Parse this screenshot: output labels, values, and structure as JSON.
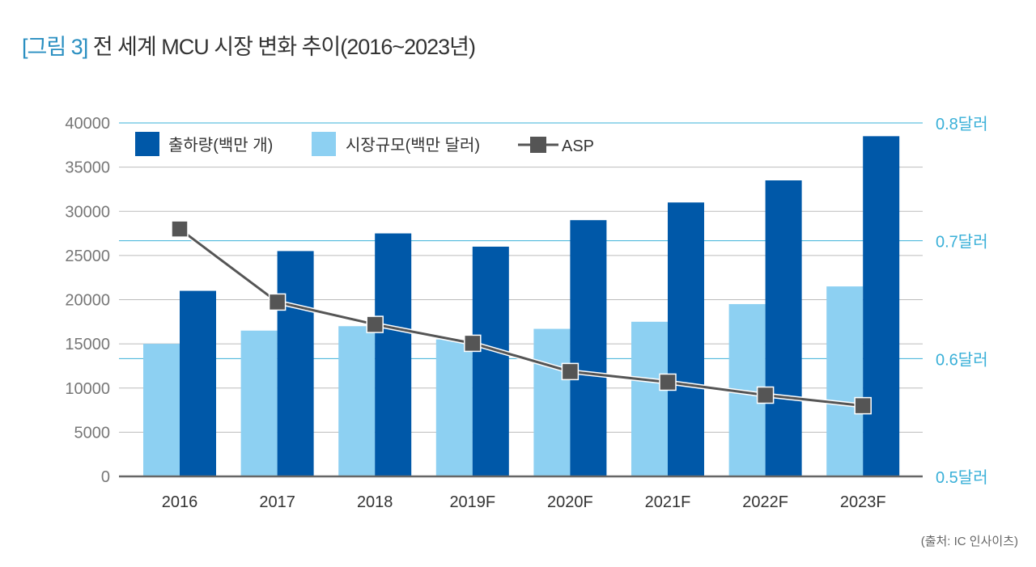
{
  "title_prefix": "[그림 3]",
  "title": "전 세계 MCU 시장 변화 추이(2016~2023년)",
  "source": "(출처: IC 인사이츠)",
  "colors": {
    "shipments": "#0058a8",
    "market": "#8dd0f2",
    "asp": "#555555",
    "right_axis": "#3ab0d8",
    "title_accent": "#2a8fc1"
  },
  "chart_data": {
    "type": "bar",
    "categories": [
      "2016",
      "2017",
      "2018",
      "2019F",
      "2020F",
      "2021F",
      "2022F",
      "2023F"
    ],
    "series": [
      {
        "name": "출하량(백만 개)",
        "type": "bar",
        "axis": "left",
        "values": [
          21000,
          25500,
          27500,
          26000,
          29000,
          31000,
          33500,
          38500
        ]
      },
      {
        "name": "시장규모(백만 달러)",
        "type": "bar",
        "axis": "left",
        "values": [
          15000,
          16500,
          17000,
          15500,
          16700,
          17500,
          19500,
          21500
        ]
      },
      {
        "name": "ASP",
        "type": "line",
        "axis": "right",
        "values": [
          0.71,
          0.648,
          0.629,
          0.613,
          0.589,
          0.58,
          0.569,
          0.56
        ]
      }
    ],
    "left_axis": {
      "ylim": [
        0,
        40000
      ],
      "ticks": [
        "0",
        "5000",
        "10000",
        "15000",
        "20000",
        "25000",
        "30000",
        "35000",
        "40000"
      ]
    },
    "right_axis": {
      "ylim": [
        0.5,
        0.8
      ],
      "ticks": [
        "0.5달러",
        "0.6달러",
        "0.7달러",
        "0.8달러"
      ],
      "tick_values": [
        0.5,
        0.6,
        0.7,
        0.8
      ]
    },
    "legend_position": "top-left",
    "grid": true
  }
}
